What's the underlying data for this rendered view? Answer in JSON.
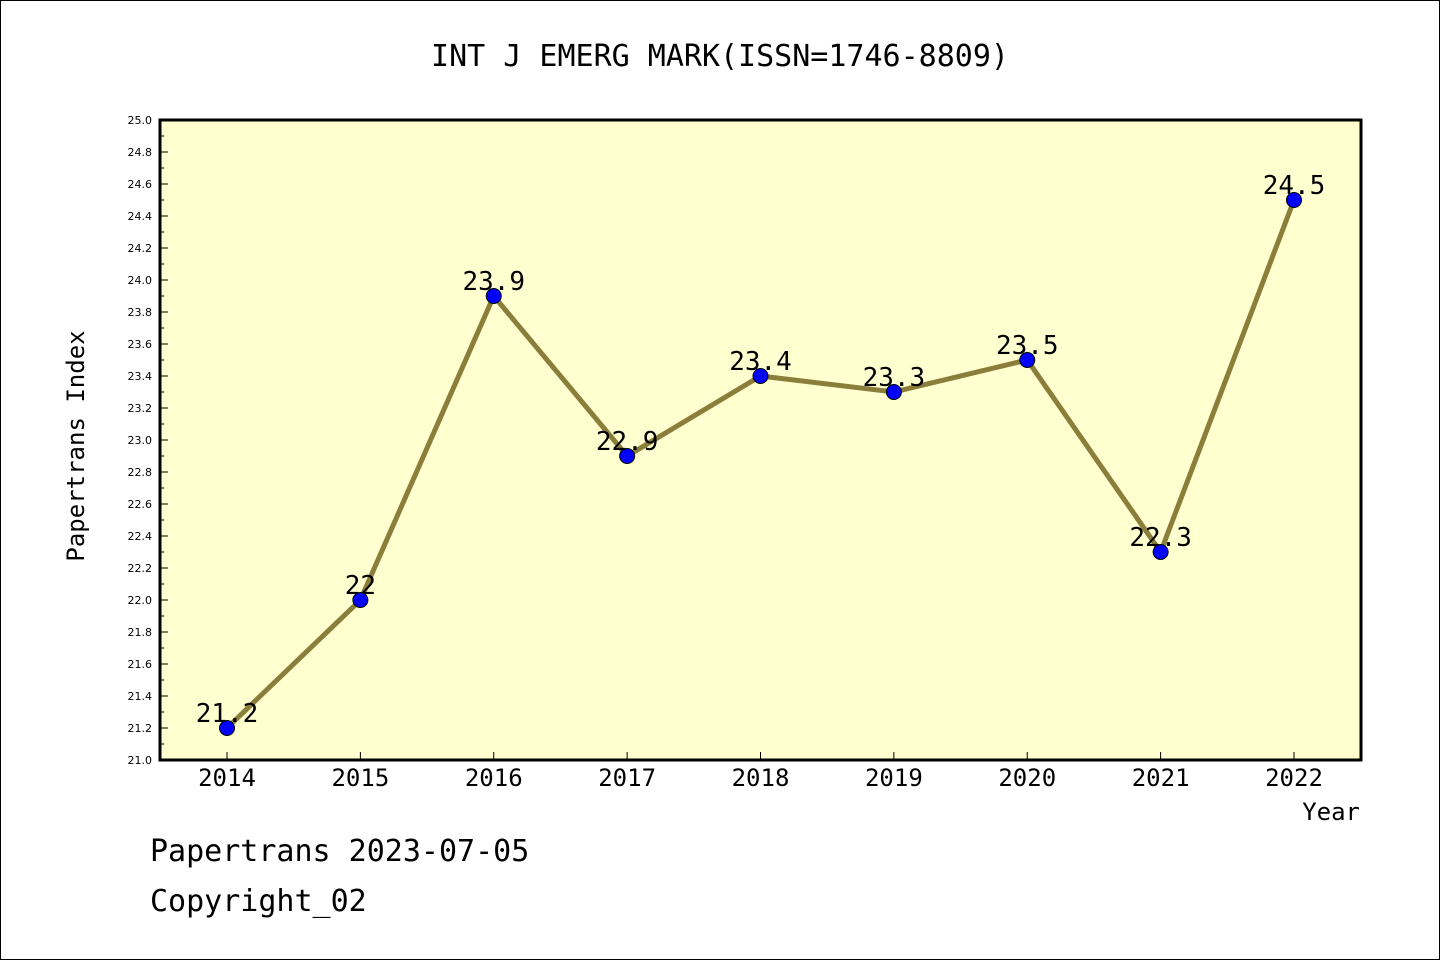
{
  "chart_data": {
    "type": "line",
    "title": "INT J EMERG MARK(ISSN=1746-8809)",
    "xlabel": "Year",
    "ylabel": "Papertrans Index",
    "categories": [
      "2014",
      "2015",
      "2016",
      "2017",
      "2018",
      "2019",
      "2020",
      "2021",
      "2022"
    ],
    "series": [
      {
        "values": [
          21.2,
          22,
          23.9,
          22.9,
          23.4,
          23.3,
          23.5,
          22.3,
          24.5
        ],
        "data_labels": [
          "21.2",
          "22",
          "23.9",
          "22.9",
          "23.4",
          "23.3",
          "23.5",
          "22.3",
          "24.5"
        ]
      }
    ],
    "ylim": [
      21.0,
      25.0
    ],
    "y_ticks": [
      "21.0",
      "21.2",
      "21.4",
      "21.6",
      "21.8",
      "22.0",
      "22.2",
      "22.4",
      "22.6",
      "22.8",
      "23.0",
      "23.2",
      "23.4",
      "23.6",
      "23.8",
      "24.0",
      "24.2",
      "24.4",
      "24.6",
      "24.8",
      "25.0"
    ],
    "grid": false,
    "colors": {
      "plot_background": "#ffffd0",
      "line": "#8b7d3a",
      "marker": "#0000ff"
    }
  },
  "footer": {
    "source": "Papertrans 2023-07-05",
    "copyright": "Copyright_02"
  }
}
